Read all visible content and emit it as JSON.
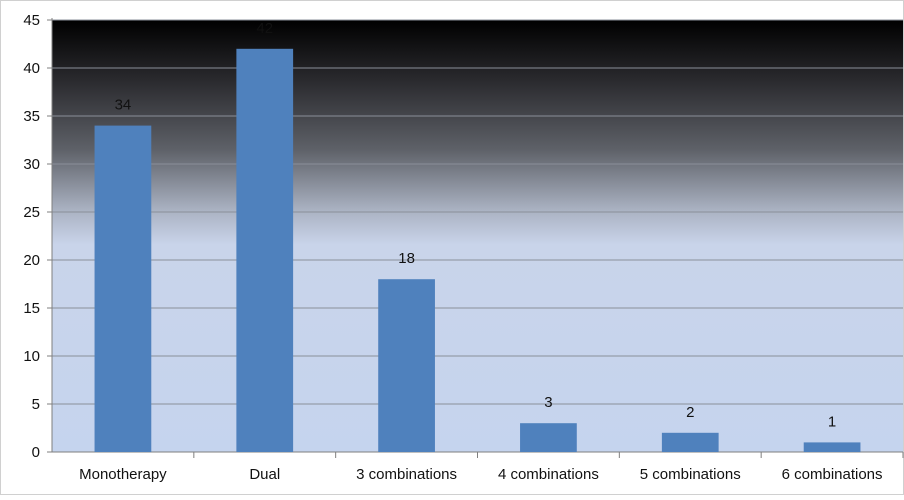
{
  "chart_data": {
    "type": "bar",
    "categories": [
      "Monotherapy",
      "Dual",
      "3 combinations",
      "4 combinations",
      "5 combinations",
      "6 combinations"
    ],
    "values": [
      34,
      42,
      18,
      3,
      2,
      1
    ],
    "data_labels": [
      "34",
      "42",
      "18",
      "3",
      "2",
      "1"
    ],
    "title": "",
    "xlabel": "",
    "ylabel": "",
    "ylim": [
      0,
      45
    ],
    "yticks": [
      0,
      5,
      10,
      15,
      20,
      25,
      30,
      35,
      40,
      45
    ],
    "ytick_labels": [
      "0",
      "5",
      "10",
      "15",
      "20",
      "25",
      "30",
      "35",
      "40",
      "45"
    ],
    "grid": true,
    "legend": "none",
    "colors": {
      "bar": "#4f81bd",
      "plot_background_top": "#000000",
      "plot_background_bottom": "#c5d4ee",
      "gridline": "#8a8f99",
      "axis": "#7f7f7f"
    }
  }
}
